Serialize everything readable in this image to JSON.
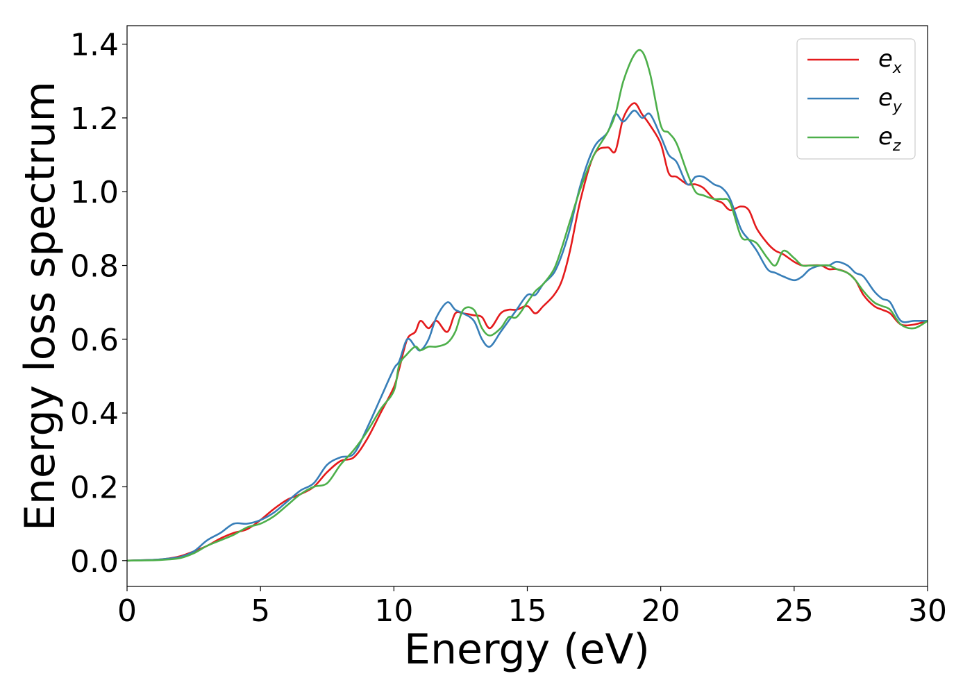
{
  "chart_data": {
    "type": "line",
    "xlabel": "Energy (eV)",
    "ylabel": "Energy loss spectrum",
    "xlim": [
      0,
      30
    ],
    "ylim": [
      -0.07,
      1.45
    ],
    "xticks": [
      0,
      5,
      10,
      15,
      20,
      25,
      30
    ],
    "xtick_labels": [
      "0",
      "5",
      "10",
      "15",
      "20",
      "25",
      "30"
    ],
    "yticks": [
      0.0,
      0.2,
      0.4,
      0.6,
      0.8,
      1.0,
      1.2,
      1.4
    ],
    "ytick_labels": [
      "0.0",
      "0.2",
      "0.4",
      "0.6",
      "0.8",
      "1.0",
      "1.2",
      "1.4"
    ],
    "grid": false,
    "legend_position": "top-right",
    "series": [
      {
        "name": "e_x",
        "legend_main": "e",
        "legend_sub": "x",
        "color": "#e41a1c",
        "x": [
          0,
          1,
          1.5,
          2,
          2.5,
          3,
          3.5,
          4,
          4.5,
          5,
          5.5,
          6,
          6.5,
          7,
          7.5,
          8,
          8.5,
          9,
          9.5,
          10,
          10.2,
          10.5,
          10.8,
          11,
          11.3,
          11.6,
          12,
          12.3,
          12.6,
          13,
          13.3,
          13.6,
          14,
          14.3,
          14.6,
          15,
          15.3,
          15.6,
          16,
          16.3,
          16.6,
          17,
          17.5,
          18,
          18.3,
          18.6,
          19,
          19.3,
          19.6,
          20,
          20.3,
          20.6,
          21,
          21.3,
          21.6,
          22,
          22.3,
          22.6,
          23,
          23.3,
          23.6,
          24,
          24.3,
          24.6,
          25,
          25.3,
          25.6,
          26,
          26.3,
          26.6,
          27,
          27.3,
          27.6,
          28,
          28.3,
          28.6,
          29,
          29.5,
          30
        ],
        "y": [
          0,
          0.002,
          0.005,
          0.012,
          0.025,
          0.04,
          0.06,
          0.075,
          0.085,
          0.11,
          0.14,
          0.165,
          0.18,
          0.2,
          0.24,
          0.27,
          0.28,
          0.33,
          0.4,
          0.47,
          0.52,
          0.6,
          0.62,
          0.65,
          0.63,
          0.65,
          0.62,
          0.67,
          0.67,
          0.665,
          0.66,
          0.63,
          0.67,
          0.68,
          0.68,
          0.69,
          0.67,
          0.69,
          0.72,
          0.76,
          0.84,
          0.98,
          1.1,
          1.12,
          1.11,
          1.2,
          1.24,
          1.21,
          1.18,
          1.13,
          1.05,
          1.04,
          1.02,
          1.02,
          1.01,
          0.98,
          0.97,
          0.95,
          0.96,
          0.95,
          0.9,
          0.86,
          0.84,
          0.83,
          0.81,
          0.8,
          0.8,
          0.8,
          0.79,
          0.79,
          0.78,
          0.76,
          0.72,
          0.69,
          0.68,
          0.67,
          0.64,
          0.64,
          0.65
        ]
      },
      {
        "name": "e_y",
        "legend_main": "e",
        "legend_sub": "y",
        "color": "#377eb8",
        "x": [
          0,
          1,
          1.5,
          2,
          2.5,
          3,
          3.5,
          4,
          4.5,
          5,
          5.5,
          6,
          6.5,
          7,
          7.5,
          8,
          8.5,
          9,
          9.5,
          10,
          10.2,
          10.5,
          10.8,
          11,
          11.3,
          11.6,
          12,
          12.3,
          12.6,
          13,
          13.3,
          13.6,
          14,
          14.3,
          14.6,
          15,
          15.3,
          15.6,
          16,
          16.3,
          16.6,
          17,
          17.5,
          18,
          18.3,
          18.6,
          19,
          19.3,
          19.6,
          20,
          20.3,
          20.6,
          21,
          21.3,
          21.6,
          22,
          22.3,
          22.6,
          23,
          23.3,
          23.6,
          24,
          24.3,
          24.6,
          25,
          25.3,
          25.6,
          26,
          26.3,
          26.6,
          27,
          27.3,
          27.6,
          28,
          28.3,
          28.6,
          29,
          29.5,
          30
        ],
        "y": [
          0,
          0.002,
          0.005,
          0.01,
          0.025,
          0.055,
          0.075,
          0.1,
          0.1,
          0.11,
          0.13,
          0.16,
          0.19,
          0.21,
          0.26,
          0.28,
          0.29,
          0.36,
          0.44,
          0.52,
          0.54,
          0.6,
          0.58,
          0.57,
          0.6,
          0.66,
          0.7,
          0.68,
          0.67,
          0.65,
          0.6,
          0.58,
          0.62,
          0.65,
          0.68,
          0.72,
          0.72,
          0.75,
          0.78,
          0.83,
          0.9,
          1.02,
          1.12,
          1.16,
          1.21,
          1.19,
          1.22,
          1.2,
          1.21,
          1.15,
          1.1,
          1.08,
          1.02,
          1.04,
          1.04,
          1.02,
          1.01,
          0.98,
          0.9,
          0.87,
          0.84,
          0.79,
          0.78,
          0.77,
          0.76,
          0.77,
          0.79,
          0.8,
          0.8,
          0.81,
          0.8,
          0.78,
          0.77,
          0.73,
          0.71,
          0.7,
          0.65,
          0.65,
          0.65
        ]
      },
      {
        "name": "e_z",
        "legend_main": "e",
        "legend_sub": "z",
        "color": "#4daf4a",
        "x": [
          0,
          1,
          1.5,
          2,
          2.5,
          3,
          3.5,
          4,
          4.5,
          5,
          5.5,
          6,
          6.5,
          7,
          7.5,
          8,
          8.5,
          9,
          9.5,
          10,
          10.2,
          10.5,
          10.8,
          11,
          11.3,
          11.6,
          12,
          12.3,
          12.6,
          13,
          13.3,
          13.6,
          14,
          14.3,
          14.6,
          15,
          15.3,
          15.6,
          16,
          16.3,
          16.6,
          17,
          17.5,
          18,
          18.3,
          18.6,
          19,
          19.3,
          19.6,
          20,
          20.3,
          20.6,
          21,
          21.3,
          21.6,
          22,
          22.3,
          22.6,
          23,
          23.3,
          23.6,
          24,
          24.3,
          24.6,
          25,
          25.3,
          25.6,
          26,
          26.3,
          26.6,
          27,
          27.3,
          27.6,
          28,
          28.3,
          28.6,
          29,
          29.5,
          30
        ],
        "y": [
          0,
          0.001,
          0.003,
          0.007,
          0.02,
          0.04,
          0.055,
          0.07,
          0.09,
          0.1,
          0.12,
          0.15,
          0.18,
          0.2,
          0.21,
          0.26,
          0.3,
          0.35,
          0.41,
          0.46,
          0.53,
          0.56,
          0.58,
          0.57,
          0.58,
          0.58,
          0.59,
          0.62,
          0.68,
          0.68,
          0.63,
          0.61,
          0.63,
          0.66,
          0.66,
          0.7,
          0.73,
          0.75,
          0.79,
          0.85,
          0.92,
          1.01,
          1.1,
          1.16,
          1.21,
          1.3,
          1.37,
          1.38,
          1.32,
          1.18,
          1.16,
          1.13,
          1.05,
          1.0,
          0.99,
          0.98,
          0.98,
          0.97,
          0.88,
          0.87,
          0.86,
          0.82,
          0.8,
          0.84,
          0.82,
          0.8,
          0.8,
          0.8,
          0.8,
          0.79,
          0.78,
          0.76,
          0.73,
          0.7,
          0.69,
          0.68,
          0.64,
          0.63,
          0.65
        ]
      }
    ]
  }
}
